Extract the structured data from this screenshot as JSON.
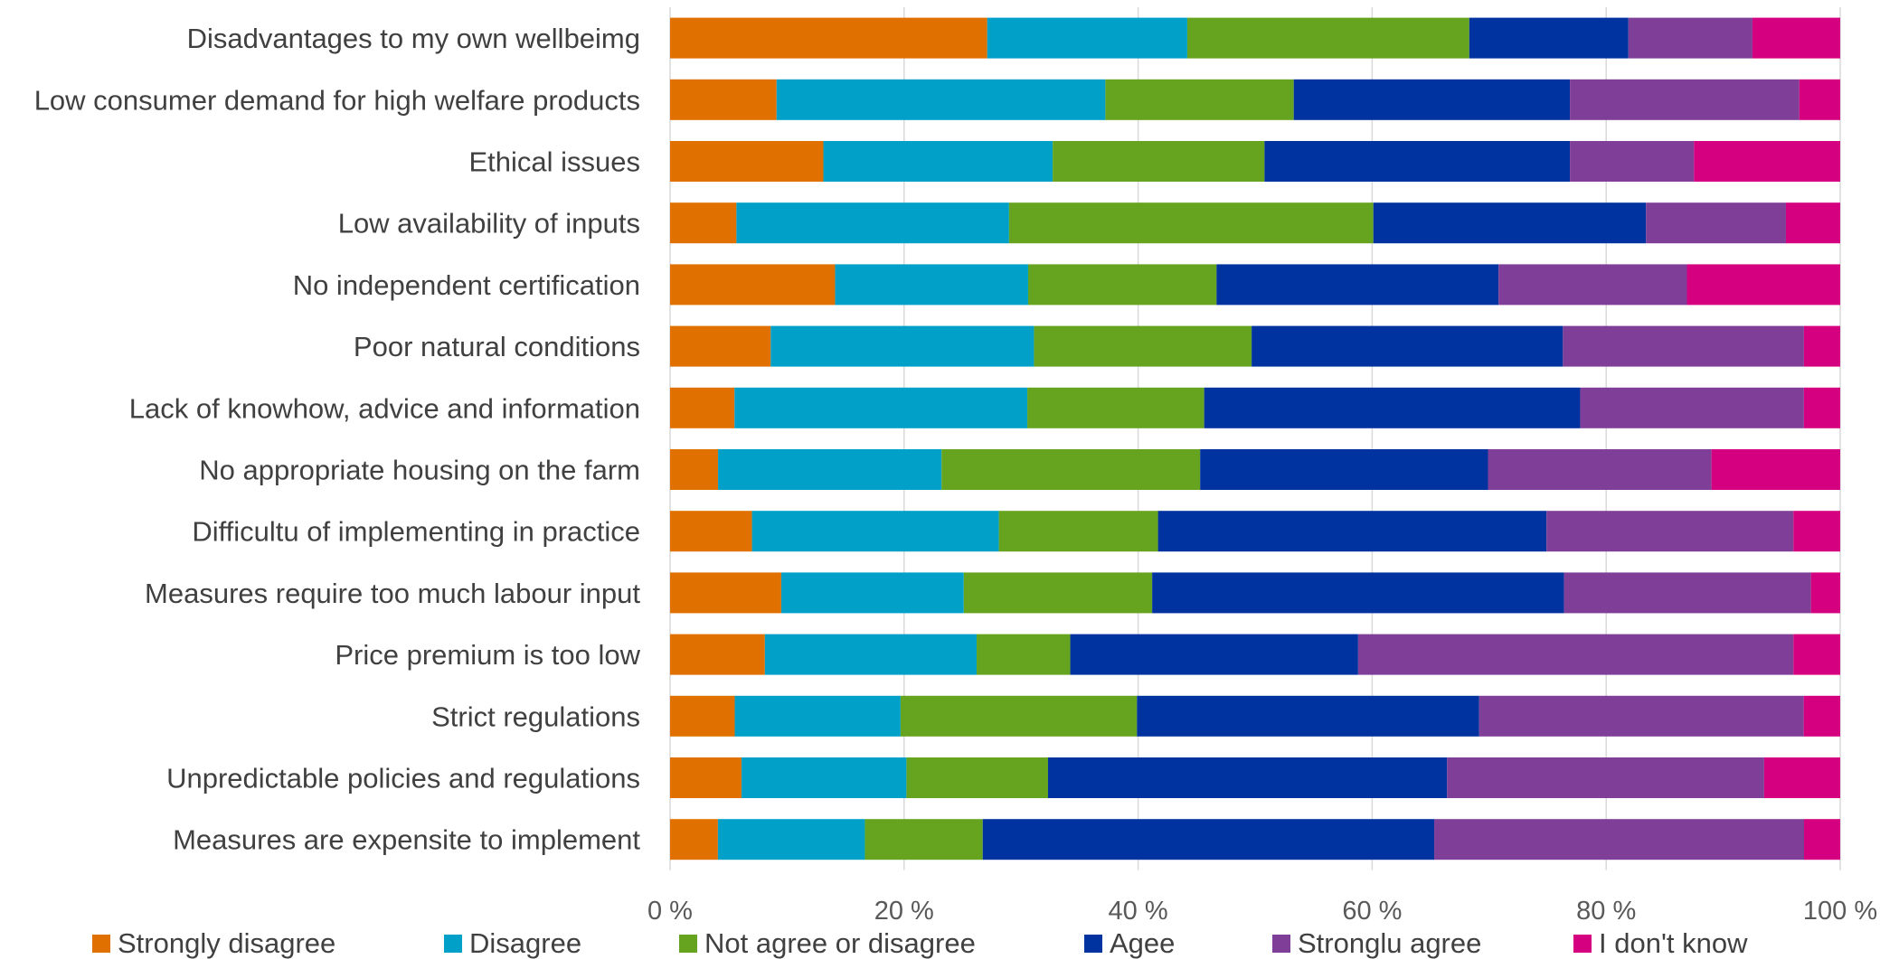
{
  "chart_data": {
    "type": "bar",
    "orientation": "horizontal",
    "stacked": "percent",
    "categories": [
      "Disadvantages to my own wellbeimg",
      "Low consumer demand for high welfare products",
      "Ethical issues",
      "Low availability of inputs",
      "No independent certification",
      "Poor natural conditions",
      "Lack of knowhow, advice and information",
      "No appropriate housing on the farm",
      "Difficultu of implementing in practice",
      "Measures require too much labour input",
      "Price premium is too low",
      "Strict regulations",
      "Unpredictable policies and regulations",
      "Measures are expensite to implement"
    ],
    "series": [
      {
        "name": "Strongly disagree",
        "color": "#e07000",
        "values": [
          27.1,
          9.1,
          13.1,
          5.5,
          14.1,
          8.6,
          5.5,
          4.1,
          7.0,
          9.5,
          8.1,
          5.5,
          6.1,
          4.1
        ]
      },
      {
        "name": "Disagree",
        "color": "#00a0c8",
        "values": [
          17.1,
          28.1,
          19.6,
          22.6,
          16.5,
          22.5,
          25.0,
          19.1,
          21.1,
          15.6,
          18.1,
          14.1,
          14.1,
          12.6
        ]
      },
      {
        "name": "Not agree or disagree",
        "color": "#66a31e",
        "values": [
          24.1,
          16.1,
          18.1,
          30.2,
          16.1,
          18.6,
          15.1,
          22.1,
          13.6,
          16.1,
          8.0,
          20.1,
          12.1,
          10.1
        ]
      },
      {
        "name": "Agee",
        "color": "#0033a0",
        "values": [
          13.6,
          23.6,
          26.1,
          22.6,
          24.1,
          26.6,
          32.1,
          24.6,
          33.2,
          35.2,
          24.6,
          29.1,
          34.1,
          38.7
        ]
      },
      {
        "name": "Stronglu agree",
        "color": "#7f3f98",
        "values": [
          10.6,
          19.6,
          10.6,
          11.6,
          16.1,
          20.6,
          19.1,
          19.1,
          21.1,
          21.1,
          37.2,
          27.6,
          27.1,
          31.7
        ]
      },
      {
        "name": "I don't know",
        "color": "#d4007f",
        "values": [
          7.5,
          3.5,
          12.5,
          4.5,
          13.1,
          3.1,
          3.1,
          11.0,
          4.0,
          2.5,
          4.0,
          3.1,
          6.5,
          3.1
        ]
      }
    ],
    "x_ticks": [
      "0 %",
      "20 %",
      "40 %",
      "60 %",
      "80 %",
      "100 %"
    ],
    "xlim": [
      0,
      100
    ],
    "grid": true,
    "legend_position": "bottom"
  }
}
